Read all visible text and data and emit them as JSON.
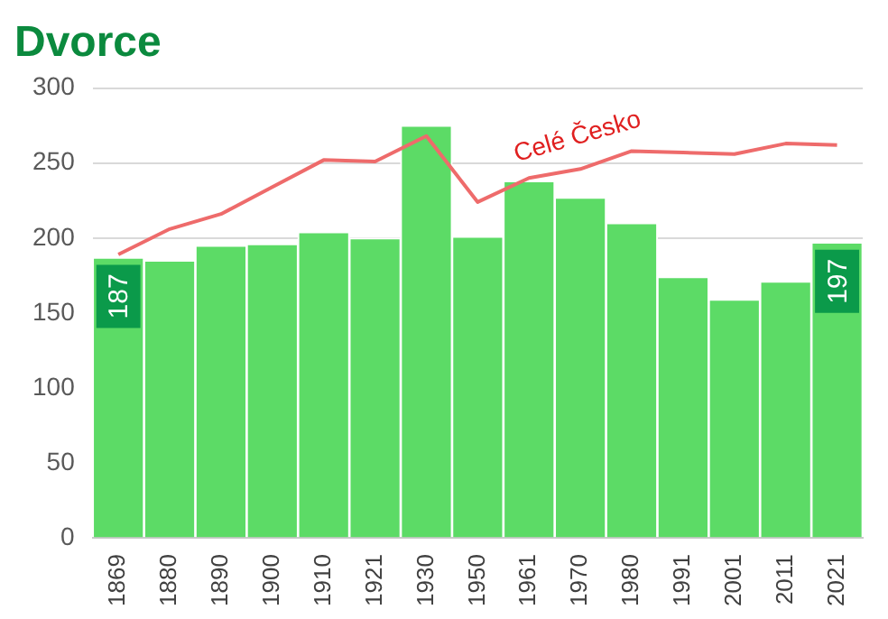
{
  "chart_data": {
    "type": "bar",
    "title": "Dvorce",
    "categories": [
      "1869",
      "1880",
      "1890",
      "1900",
      "1910",
      "1921",
      "1930",
      "1950",
      "1961",
      "1970",
      "1980",
      "1991",
      "2001",
      "2011",
      "2021"
    ],
    "series": [
      {
        "color": "#5cdb66",
        "values": [
          187,
          185,
          195,
          196,
          204,
          200,
          275,
          201,
          238,
          227,
          210,
          174,
          159,
          171,
          197
        ],
        "value_labels": [
          "187",
          null,
          null,
          null,
          null,
          null,
          null,
          null,
          null,
          null,
          null,
          null,
          null,
          null,
          "197"
        ]
      },
      {
        "type": "line",
        "name": "Celé Česko",
        "color": "#ee6b6b",
        "values": [
          189,
          206,
          216,
          234,
          252,
          251,
          268,
          224,
          240,
          246,
          258,
          257,
          256,
          263,
          262
        ]
      }
    ],
    "ylim": [
      0,
      300
    ],
    "yticks": [
      0,
      50,
      100,
      150,
      200,
      250,
      300
    ],
    "grid": "y",
    "legend": false,
    "marker": "none"
  }
}
